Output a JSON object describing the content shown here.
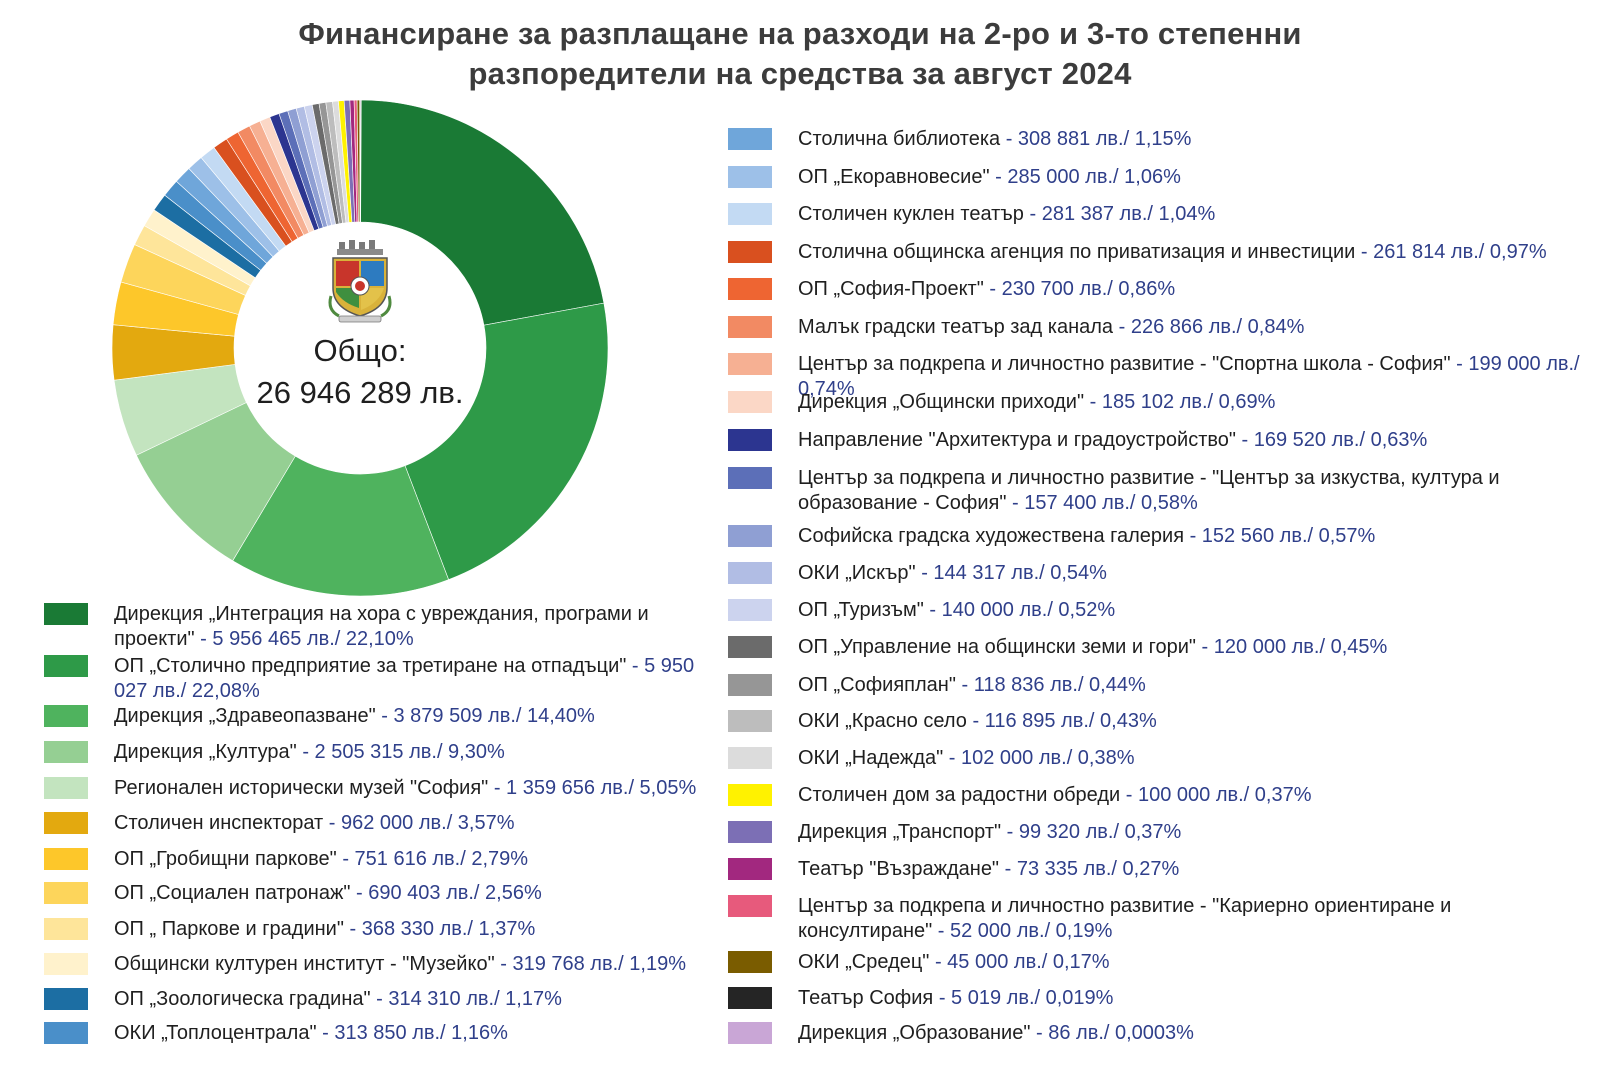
{
  "title_line1": "Финансиране за разплащане на разходи на 2-ро и 3-то степенни",
  "title_line2": "разпоредители на средства за август 2024",
  "center_label_line1": "Общо:",
  "center_label_line2": "26 946 289 лв.",
  "crest_icon": "sofia-coat-of-arms-icon",
  "chart_data": {
    "type": "pie",
    "variant": "donut",
    "title": "Финансиране за разплащане на разходи на 2-ро и 3-то степенни разпоредители на средства за август 2024",
    "total": "26 946 289 лв.",
    "slices": [
      {
        "label": "Дирекция „Интеграция на хора с увреждания, програми и проекти\"",
        "value_text": " - 5 956 465 лв./ 22,10%",
        "value": 5956465,
        "percent": 22.1,
        "color": "#1a7a35"
      },
      {
        "label": "ОП „Столично предприятие за третиране на отпадъци\"",
        "value_text": " - 5 950 027 лв./ 22,08%",
        "value": 5950027,
        "percent": 22.08,
        "color": "#2e9a48"
      },
      {
        "label": "Дирекция „Здравеопазване\"",
        "value_text": " - 3 879 509 лв./ 14,40%",
        "value": 3879509,
        "percent": 14.4,
        "color": "#4fb35e"
      },
      {
        "label": "Дирекция „Култура\"",
        "value_text": " - 2 505 315 лв./ 9,30%",
        "value": 2505315,
        "percent": 9.3,
        "color": "#95cf93"
      },
      {
        "label": "Регионален исторически музей \"София\"",
        "value_text": " - 1 359 656 лв./ 5,05%",
        "value": 1359656,
        "percent": 5.05,
        "color": "#c3e4bf"
      },
      {
        "label": "Столичен инспекторат",
        "value_text": " - 962 000 лв./ 3,57%",
        "value": 962000,
        "percent": 3.57,
        "color": "#e3a90f"
      },
      {
        "label": "ОП „Гробищни паркове\"",
        "value_text": " - 751 616 лв./ 2,79%",
        "value": 751616,
        "percent": 2.79,
        "color": "#fdc72a"
      },
      {
        "label": "ОП „Социален патронаж\"",
        "value_text": " - 690 403 лв./ 2,56%",
        "value": 690403,
        "percent": 2.56,
        "color": "#fdd55b"
      },
      {
        "label": "ОП „ Паркове и градини\"",
        "value_text": " - 368 330 лв./ 1,37%",
        "value": 368330,
        "percent": 1.37,
        "color": "#fee59a"
      },
      {
        "label": "Общински културен институт - \"Музейко\"",
        "value_text": " - 319 768 лв./ 1,19%",
        "value": 319768,
        "percent": 1.19,
        "color": "#fff2cc"
      },
      {
        "label": "ОП „Зоологическа градина\"",
        "value_text": " - 314 310 лв./ 1,17%",
        "value": 314310,
        "percent": 1.17,
        "color": "#1c6ea3"
      },
      {
        "label": "ОКИ „Топлоцентрала\"",
        "value_text": " - 313 850 лв./ 1,16%",
        "value": 313850,
        "percent": 1.16,
        "color": "#4a8fc9"
      },
      {
        "label": "Столична библиотека",
        "value_text": " - 308 881 лв./ 1,15%",
        "value": 308881,
        "percent": 1.15,
        "color": "#6fa6da"
      },
      {
        "label": "ОП „Екоравновесие\"",
        "value_text": " - 285 000 лв./ 1,06%",
        "value": 285000,
        "percent": 1.06,
        "color": "#9dc0e8"
      },
      {
        "label": "Столичен куклен театър",
        "value_text": " - 281 387 лв./ 1,04%",
        "value": 281387,
        "percent": 1.04,
        "color": "#c3daf3"
      },
      {
        "label": "Столична общинска агенция по приватизация и инвестиции",
        "value_text": " - 261 814 лв./ 0,97%",
        "value": 261814,
        "percent": 0.97,
        "color": "#d9501f"
      },
      {
        "label": "ОП „София-Проект\"",
        "value_text": " - 230 700 лв./ 0,86%",
        "value": 230700,
        "percent": 0.86,
        "color": "#ee6532"
      },
      {
        "label": "Малък градски театър зад канала",
        "value_text": " - 226 866 лв./ 0,84%",
        "value": 226866,
        "percent": 0.84,
        "color": "#f28a63"
      },
      {
        "label": "Център за подкрепа и личностно развитие - \"Спортна школа - София\"",
        "value_text": " - 199 000 лв./ 0,74%",
        "value": 199000,
        "percent": 0.74,
        "color": "#f6b093"
      },
      {
        "label": "Дирекция „Общински приходи\"",
        "value_text": " - 185 102 лв./ 0,69%",
        "value": 185102,
        "percent": 0.69,
        "color": "#fbd7c6"
      },
      {
        "label": "Направление \"Архитектура и градоустройство\"",
        "value_text": " - 169 520 лв./ 0,63%",
        "value": 169520,
        "percent": 0.63,
        "color": "#2c3590"
      },
      {
        "label": "Център за подкрепа и личностно развитие - \"Център за изкуства, култура и образование - София\"",
        "value_text": " - 157 400 лв./ 0,58%",
        "value": 157400,
        "percent": 0.58,
        "color": "#5c6fb8"
      },
      {
        "label": "Софийска градска художествена галерия",
        "value_text": " - 152 560 лв./ 0,57%",
        "value": 152560,
        "percent": 0.57,
        "color": "#8f9fd3"
      },
      {
        "label": "ОКИ „Искър\"",
        "value_text": " - 144 317 лв./ 0,54%",
        "value": 144317,
        "percent": 0.54,
        "color": "#b1bde4"
      },
      {
        "label": "ОП „Туризъм\"",
        "value_text": " - 140 000 лв./ 0,52%",
        "value": 140000,
        "percent": 0.52,
        "color": "#ccd3ee"
      },
      {
        "label": "ОП „Управление на общински земи и гори\"",
        "value_text": " - 120 000 лв./ 0,45%",
        "value": 120000,
        "percent": 0.45,
        "color": "#6b6b6b"
      },
      {
        "label": "ОП „Софияплан\"",
        "value_text": " - 118 836 лв./ 0,44%",
        "value": 118836,
        "percent": 0.44,
        "color": "#969696"
      },
      {
        "label": "ОКИ „Красно село",
        "value_text": " - 116 895 лв./ 0,43%",
        "value": 116895,
        "percent": 0.43,
        "color": "#bdbdbd"
      },
      {
        "label": "ОКИ „Надежда\"",
        "value_text": " - 102 000 лв./ 0,38%",
        "value": 102000,
        "percent": 0.38,
        "color": "#dcdcdc"
      },
      {
        "label": "Столичен дом за радостни обреди",
        "value_text": " - 100 000 лв./ 0,37%",
        "value": 100000,
        "percent": 0.37,
        "color": "#fff200"
      },
      {
        "label": "Дирекция „Транспорт\"",
        "value_text": " - 99 320 лв./ 0,37%",
        "value": 99320,
        "percent": 0.37,
        "color": "#7c6fb5"
      },
      {
        "label": "Театър \"Възраждане\"",
        "value_text": " - 73 335 лв./ 0,27%",
        "value": 73335,
        "percent": 0.27,
        "color": "#a2287f"
      },
      {
        "label": "Център за подкрепа и личностно развитие - \"Кариерно ориентиране и консултиране\"",
        "value_text": " - 52 000 лв./ 0,19%",
        "value": 52000,
        "percent": 0.19,
        "color": "#e75a7c"
      },
      {
        "label": "ОКИ „Средец\"",
        "value_text": " - 45 000 лв./ 0,17%",
        "value": 45000,
        "percent": 0.17,
        "color": "#7a5c00"
      },
      {
        "label": "Театър София",
        "value_text": " - 5 019 лв./ 0,019%",
        "value": 5019,
        "percent": 0.019,
        "color": "#252525"
      },
      {
        "label": "Дирекция „Образование\"",
        "value_text": " - 86 лв./ 0,0003%",
        "value": 86,
        "percent": 0.0003,
        "color": "#c9a6d6"
      }
    ]
  }
}
